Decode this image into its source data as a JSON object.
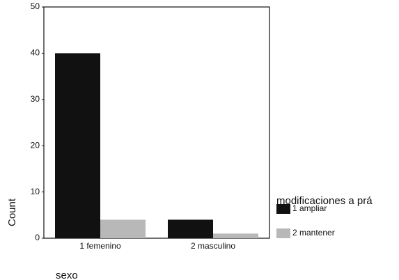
{
  "chart_data": {
    "type": "bar",
    "categories": [
      "1 femenino",
      "2 masculino"
    ],
    "series": [
      {
        "name": "1 ampliar",
        "color": "#111111",
        "values": [
          40,
          4
        ]
      },
      {
        "name": "2 mantener",
        "color": "#b8b8b8",
        "values": [
          4,
          1
        ]
      }
    ],
    "ylim": [
      0,
      50
    ],
    "yticks": [
      0,
      10,
      20,
      30,
      40,
      50
    ],
    "ylabel": "Count",
    "xlabel": "sexo",
    "legend_title": "modificaciones a prá",
    "grid": false
  }
}
